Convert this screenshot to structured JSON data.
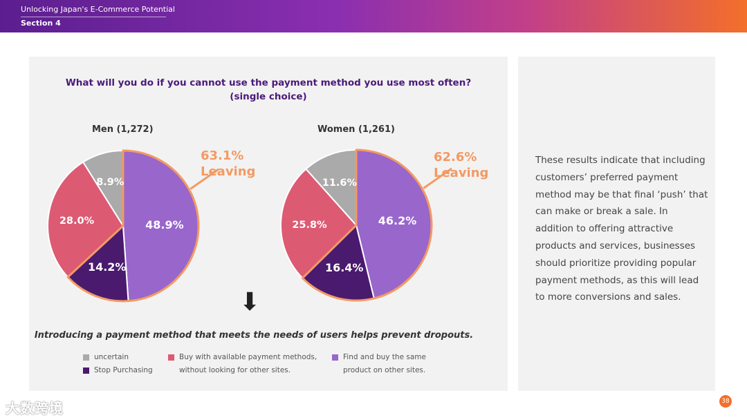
{
  "header": {
    "title": "Unlocking Japan's E-Commerce Potential",
    "section": "Section 4"
  },
  "question": {
    "line1": "What will you do if you cannot use the payment method you use most often?",
    "line2": "(single choice)"
  },
  "chart_data": [
    {
      "type": "pie",
      "title": "Men (1,272)",
      "labels": [
        "Find and buy the same product on other sites.",
        "Stop Purchasing",
        "Buy with available payment methods, without looking for other sites.",
        "uncertain"
      ],
      "values": [
        48.9,
        14.2,
        28.0,
        8.9
      ],
      "value_labels": [
        "48.9%",
        "14.2%",
        "28.0%",
        "8.9%"
      ],
      "colors": [
        "#9966cc",
        "#4a1a6e",
        "#dd5a73",
        "#aaaaaa"
      ],
      "highlight": {
        "value": "63.1%",
        "label": "Leaving"
      }
    },
    {
      "type": "pie",
      "title": "Women (1,261)",
      "labels": [
        "Find and buy the same product on other sites.",
        "Stop Purchasing",
        "Buy with available payment methods, without looking for other sites.",
        "uncertain"
      ],
      "values": [
        46.2,
        16.4,
        25.8,
        11.6
      ],
      "value_labels": [
        "46.2%",
        "16.4%",
        "25.8%",
        "11.6%"
      ],
      "colors": [
        "#9966cc",
        "#4a1a6e",
        "#dd5a73",
        "#aaaaaa"
      ],
      "highlight": {
        "value": "62.6%",
        "label": "Leaving"
      }
    }
  ],
  "arrow_glyph": "⬇",
  "conclusion": "Introducing a payment method that meets the needs of users helps prevent dropouts.",
  "legend": [
    {
      "line1": "uncertain",
      "line2": "",
      "color": "#aaaaaa"
    },
    {
      "line1": "Stop Purchasing",
      "line2": "",
      "color": "#4a1a6e"
    },
    {
      "line1": "Buy with available payment methods,",
      "line2": "without looking for other sites.",
      "color": "#dd5a73"
    },
    {
      "line1": "Find and buy the same",
      "line2": "product on other sites.",
      "color": "#9966cc"
    }
  ],
  "body_text": "These results indicate that including customers’ preferred payment method may be that final ‘push’ that can make or break a sale. In addition to offering attractive products and services, businesses should prioritize providing popular payment methods, as this will lead to more conversions and sales.",
  "page_number": "38",
  "watermark": "大数跨境",
  "colors": {
    "highlight": "#f39a63",
    "accent": "#f36f2a"
  }
}
